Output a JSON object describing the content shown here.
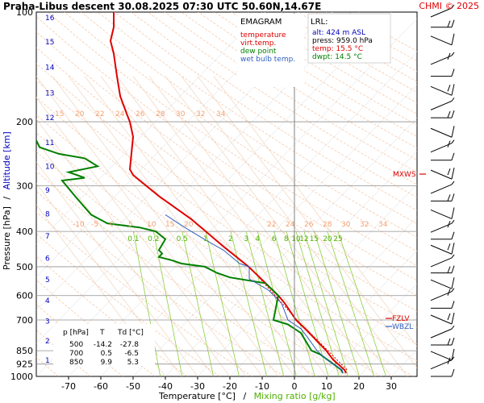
{
  "header": {
    "title": "Praha-Libus   descent   30.08.2025 07:30 UTC   50.60N,14.67E",
    "copyright": "CHMI © 2025"
  },
  "legend": {
    "title": "EMAGRAM",
    "items": [
      {
        "label": "temperature",
        "color": "#e00000"
      },
      {
        "label": "virt.temp.",
        "color": "#e00000"
      },
      {
        "label": "dew point",
        "color": "#008000"
      },
      {
        "label": "wet bulb temp.",
        "color": "#3060c0"
      }
    ]
  },
  "lrl": {
    "title": "LRL:",
    "lines": [
      {
        "text": "alt: 424 m ASL",
        "color": "#0000c0"
      },
      {
        "text": "press: 959.0 hPa",
        "color": "#000000"
      },
      {
        "text": "temp: 15.5 °C",
        "color": "#e00000"
      },
      {
        "text": "dwpt: 14.5 °C",
        "color": "#008000"
      }
    ]
  },
  "levels_table": {
    "header": [
      "p [hPa]",
      "T",
      "Td [°C]"
    ],
    "rows": [
      [
        "500",
        "-14.2",
        "-27.8"
      ],
      [
        "700",
        "0.5",
        "-6.5"
      ],
      [
        "850",
        "9.9",
        "5.3"
      ]
    ]
  },
  "markers": {
    "mxws": "MXWS",
    "fzlv": "FZLV",
    "wbzl": "WBZL"
  },
  "chart_data": {
    "type": "line",
    "title": "Praha-Libus   descent   30.08.2025 07:30 UTC   50.60N,14.67E",
    "diagram": "EMAGRAM",
    "xlabel": "Temperature [°C]",
    "xlabel_sep": "/",
    "xlabel2": "Mixing ratio [g/kg]",
    "ylabel": "Pressure [hPa]",
    "ylabel_sep": "/",
    "ylabel2": "Altitude [km]",
    "xlim": [
      -80,
      38
    ],
    "ylim": [
      1000,
      100
    ],
    "y_scale": "log",
    "x_ticks": [
      -70,
      -60,
      -50,
      -40,
      -30,
      -20,
      -10,
      0,
      10,
      20,
      30
    ],
    "y_ticks": [
      100,
      200,
      300,
      400,
      500,
      600,
      700,
      850,
      925,
      1000
    ],
    "y_gridlines": [
      200,
      300,
      400,
      500,
      600,
      700,
      850,
      925
    ],
    "altitude_ticks": [
      1,
      2,
      3,
      4,
      5,
      6,
      7,
      8,
      9,
      10,
      11,
      12,
      13,
      14,
      15,
      16
    ],
    "altitude_tick_pressures": [
      898,
      795,
      701,
      616,
      540,
      472,
      410,
      356,
      307,
      264,
      227,
      194,
      166,
      141,
      120,
      103
    ],
    "dry_adiabat_labels": [
      "-10",
      "-5",
      "0",
      "5",
      "10",
      "15",
      "20",
      "22",
      "24",
      "26",
      "28",
      "30",
      "32",
      "34"
    ],
    "upper_adiabat_labels": [
      "15",
      "20",
      "22",
      "24",
      "26",
      "28",
      "30",
      "32",
      "34"
    ],
    "mixing_ratio_labels": [
      "0.1",
      "0.2",
      "0.5",
      "1",
      "2",
      "3",
      "4",
      "6",
      "8",
      "10",
      "12",
      "15",
      "20",
      "25"
    ],
    "series": [
      {
        "name": "temperature",
        "color": "#e00000",
        "points": [
          [
            -14.2,
            500
          ],
          [
            -5,
            600
          ],
          [
            -4.3,
            610
          ],
          [
            -3,
            630
          ],
          [
            0.5,
            700
          ],
          [
            4,
            750
          ],
          [
            7,
            800
          ],
          [
            9.9,
            850
          ],
          [
            12,
            900
          ],
          [
            15.5,
            959
          ],
          [
            16,
            980
          ],
          [
            -22,
            440
          ],
          [
            -32,
            370
          ],
          [
            -42,
            320
          ],
          [
            -50,
            280
          ],
          [
            -51,
            270
          ],
          [
            -50,
            220
          ],
          [
            -51,
            200
          ],
          [
            -52,
            190
          ],
          [
            -54,
            170
          ],
          [
            -55,
            150
          ],
          [
            -56,
            130
          ],
          [
            -57,
            120
          ],
          [
            -56,
            110
          ],
          [
            -56,
            100
          ]
        ]
      },
      {
        "name": "dew point",
        "color": "#008000",
        "points": [
          [
            -27.8,
            500
          ],
          [
            -35,
            490
          ],
          [
            -38,
            480
          ],
          [
            -42,
            470
          ],
          [
            -41,
            460
          ],
          [
            -42,
            450
          ],
          [
            -40,
            420
          ],
          [
            -43,
            400
          ],
          [
            -48,
            390
          ],
          [
            -58,
            380
          ],
          [
            -63,
            360
          ],
          [
            -68,
            320
          ],
          [
            -72,
            290
          ],
          [
            -65,
            285
          ],
          [
            -70,
            275
          ],
          [
            -61,
            265
          ],
          [
            -65,
            252
          ],
          [
            -73,
            245
          ],
          [
            -79,
            235
          ],
          [
            -80,
            225
          ],
          [
            -24,
            520
          ],
          [
            -20,
            535
          ],
          [
            -9,
            555
          ],
          [
            -5,
            600
          ],
          [
            -6.5,
            700
          ],
          [
            -2,
            720
          ],
          [
            2,
            760
          ],
          [
            5.3,
            850
          ],
          [
            8,
            870
          ],
          [
            14.5,
            959
          ],
          [
            15,
            980
          ]
        ]
      },
      {
        "name": "wet bulb temp.",
        "color": "#3060c0",
        "points": [
          [
            -40,
            360
          ],
          [
            -34,
            390
          ],
          [
            -28,
            420
          ],
          [
            -22,
            450
          ],
          [
            -17,
            490
          ],
          [
            -14,
            500
          ],
          [
            -14,
            540
          ],
          [
            -8,
            580
          ],
          [
            -4,
            630
          ],
          [
            -2,
            700
          ],
          [
            2,
            740
          ],
          [
            4,
            780
          ],
          [
            7,
            850
          ],
          [
            10,
            900
          ],
          [
            14.8,
            959
          ],
          [
            15,
            980
          ]
        ]
      },
      {
        "name": "virt.temp.",
        "color": "#e00000",
        "points": [
          [
            -14.0,
            500
          ],
          [
            0.8,
            700
          ],
          [
            10.4,
            850
          ],
          [
            16.3,
            959
          ]
        ]
      }
    ],
    "freezing_level_hpa": 700,
    "wet_bulb_zero_hpa": 715,
    "max_wind_hpa": 270,
    "wind_barb_pressures": [
      100,
      110,
      120,
      135,
      150,
      165,
      180,
      195,
      215,
      235,
      255,
      280,
      305,
      330,
      360,
      390,
      420,
      450,
      485,
      520,
      560,
      600,
      650,
      700,
      760,
      820,
      880,
      925,
      1000
    ]
  }
}
